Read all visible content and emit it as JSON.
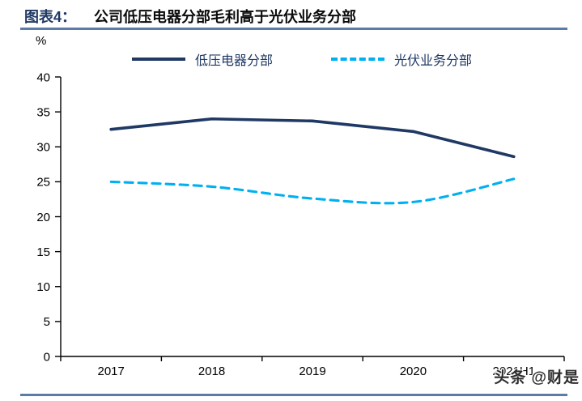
{
  "header": {
    "tag": "图表4：",
    "title": "公司低压电器分部毛利高于光伏业务分部"
  },
  "unit_label": "%",
  "watermark": "头条 @财是",
  "colors": {
    "title_tag": "#1f3864",
    "rule": "#5b7ca8",
    "axis": "#000000",
    "primary_line": "#1f3864",
    "secondary_line": "#00b0f0",
    "legend_text": "#1f3864"
  },
  "chart_data": {
    "type": "line",
    "title": "公司低压电器分部毛利高于光伏业务分部",
    "categories": [
      "2017",
      "2018",
      "2019",
      "2020",
      "2021H1"
    ],
    "series": [
      {
        "name": "低压电器分部",
        "values": [
          32.5,
          34.0,
          33.7,
          32.2,
          28.6
        ],
        "style": "solid",
        "smooth": false,
        "color": "#1f3864"
      },
      {
        "name": "光伏业务分部",
        "values": [
          25.0,
          24.3,
          22.6,
          22.1,
          25.4
        ],
        "style": "dashed",
        "smooth": true,
        "color": "#00b0f0"
      }
    ],
    "ylabel": "%",
    "xlabel": "",
    "ylim": [
      0,
      40
    ],
    "yticks": [
      0,
      5,
      10,
      15,
      20,
      25,
      30,
      35,
      40
    ],
    "grid": false,
    "legend_position": "top"
  }
}
